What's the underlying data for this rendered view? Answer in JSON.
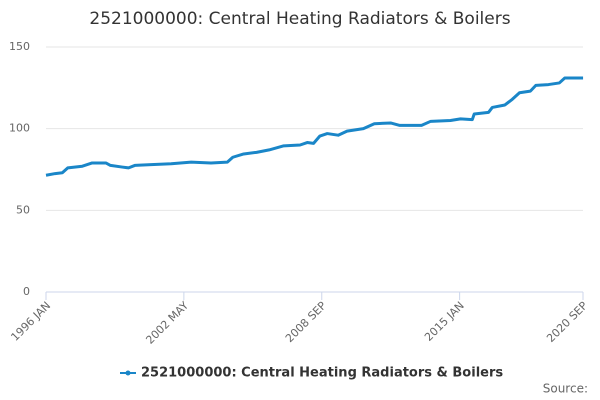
{
  "chart_data": {
    "type": "line",
    "title": "2521000000: Central Heating Radiators & Boilers",
    "source": "Source:",
    "x": [
      1996.0,
      1996.42,
      1996.75,
      1997.0,
      1997.67,
      1998.12,
      1998.75,
      1998.96,
      1999.5,
      1999.79,
      2000.08,
      2000.83,
      2001.75,
      2002.67,
      2003.58,
      2004.33,
      2004.58,
      2005.08,
      2005.67,
      2006.25,
      2006.92,
      2007.67,
      2008.0,
      2008.29,
      2008.58,
      2008.92,
      2009.42,
      2009.83,
      2010.58,
      2011.08,
      2011.83,
      2012.25,
      2013.25,
      2013.67,
      2014.58,
      2015.04,
      2015.58,
      2015.67,
      2016.33,
      2016.5,
      2017.08,
      2017.42,
      2017.75,
      2018.25,
      2018.5,
      2019.08,
      2019.58,
      2019.83,
      2020.67
    ],
    "series": [
      {
        "name": "2521000000: Central Heating Radiators & Boilers",
        "color": "#1a86c8",
        "values": [
          71.5,
          72.5,
          73,
          76,
          77,
          79,
          79,
          77.5,
          76.5,
          76,
          77.5,
          78,
          78.5,
          79.5,
          79,
          79.5,
          82.5,
          84.5,
          85.5,
          87,
          89.5,
          90,
          91.5,
          91,
          95.5,
          97,
          96,
          98.5,
          100,
          103,
          103.5,
          102,
          102,
          104.5,
          105,
          106,
          105.5,
          109,
          110,
          113,
          114.5,
          118,
          122,
          123,
          126.5,
          127,
          128,
          131,
          131
        ]
      }
    ],
    "xlim": [
      1996.0,
      2020.667
    ],
    "xticks": [
      {
        "value": 1996.0,
        "label": "1996 JAN"
      },
      {
        "value": 2002.333,
        "label": "2002 MAY"
      },
      {
        "value": 2008.667,
        "label": "2008 SEP"
      },
      {
        "value": 2015.0,
        "label": "2015 JAN"
      },
      {
        "value": 2020.667,
        "label": "2020 SEP"
      }
    ],
    "ylim": [
      0,
      150
    ],
    "yticks": [
      0,
      50,
      100,
      150
    ],
    "grid": true
  }
}
